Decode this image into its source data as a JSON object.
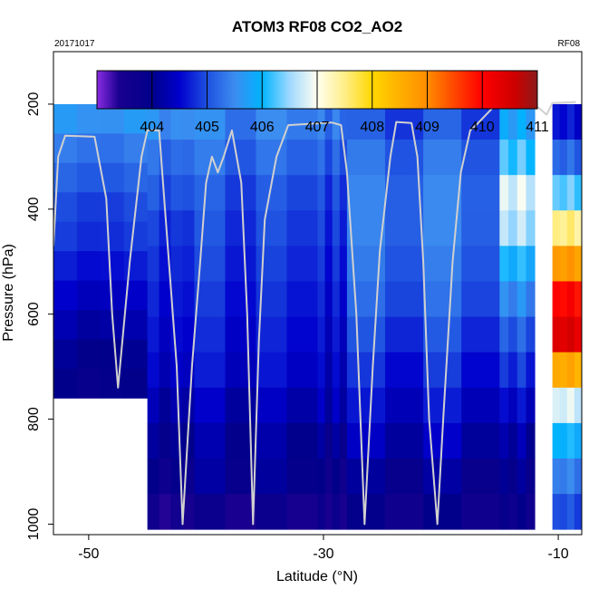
{
  "chart_data": {
    "type": "heatmap",
    "title": "ATOM3 RF08 CO2_AO2",
    "date_label": "20171017",
    "flight_label": "RF08",
    "xlabel": "Latitude (°N)",
    "ylabel": "Pressure (hPa)",
    "xlim": [
      -53,
      -8
    ],
    "ylim": [
      1020,
      100
    ],
    "x_ticks": [
      -50,
      -30,
      -10
    ],
    "y_ticks": [
      200,
      400,
      600,
      800,
      1000
    ],
    "x_tick_labels": [
      "-50",
      "-30",
      "-10"
    ],
    "y_tick_labels": [
      "200",
      "400",
      "600",
      "800",
      "1000"
    ],
    "colorbar": {
      "min": 403,
      "max": 411,
      "ticks": [
        404,
        405,
        406,
        407,
        408,
        409,
        410,
        411
      ],
      "tick_labels": [
        "404",
        "405",
        "406",
        "407",
        "408",
        "409",
        "410",
        "411"
      ],
      "stops": [
        {
          "v": 403.0,
          "c": "#8a2be2"
        },
        {
          "v": 403.4,
          "c": "#1a0090"
        },
        {
          "v": 404.0,
          "c": "#00008b"
        },
        {
          "v": 404.5,
          "c": "#0000cd"
        },
        {
          "v": 405.0,
          "c": "#1e50e0"
        },
        {
          "v": 405.5,
          "c": "#3c8cf0"
        },
        {
          "v": 406.0,
          "c": "#00b4ff"
        },
        {
          "v": 406.5,
          "c": "#9fd8ff"
        },
        {
          "v": 407.0,
          "c": "#fffff0"
        },
        {
          "v": 407.5,
          "c": "#ffee88"
        },
        {
          "v": 408.0,
          "c": "#ffd700"
        },
        {
          "v": 408.5,
          "c": "#ffb000"
        },
        {
          "v": 409.0,
          "c": "#ff8c00"
        },
        {
          "v": 409.5,
          "c": "#ff4500"
        },
        {
          "v": 410.0,
          "c": "#ff0000"
        },
        {
          "v": 410.6,
          "c": "#cd0000"
        },
        {
          "v": 411.0,
          "c": "#8b1a1a"
        }
      ]
    },
    "profiles": [
      {
        "lat0": -53,
        "lat1": -45,
        "bottom": 760,
        "values": [
          405.6,
          405.3,
          405.1,
          404.9,
          404.8,
          404.6,
          404.4,
          404.2,
          404.0,
          403.9
        ]
      },
      {
        "lat0": -45,
        "lat1": -41,
        "bottom": 1010,
        "values": [
          405.5,
          405.2,
          405.0,
          404.8,
          404.7,
          404.6,
          404.5,
          404.4,
          404.2,
          404.0,
          403.8,
          403.5
        ]
      },
      {
        "lat0": -41,
        "lat1": -30.5,
        "bottom": 1010,
        "values": [
          405.4,
          405.2,
          405.0,
          404.9,
          404.8,
          404.7,
          404.6,
          404.5,
          404.3,
          404.1,
          404.0,
          403.6
        ]
      },
      {
        "lat0": -30.5,
        "lat1": -28,
        "bottom": 1010,
        "values": [
          405.3,
          405.1,
          404.9,
          404.8,
          404.7,
          404.6,
          404.5,
          404.4,
          404.3,
          404.0,
          403.8,
          403.6
        ]
      },
      {
        "lat0": -28,
        "lat1": -15,
        "bottom": 1010,
        "values": [
          405.0,
          405.2,
          405.3,
          405.3,
          405.2,
          405.1,
          404.9,
          404.7,
          404.5,
          404.3,
          404.0,
          403.8
        ]
      },
      {
        "lat0": -15,
        "lat1": -12,
        "bottom": 1010,
        "values": [
          405.8,
          406.2,
          406.8,
          406.6,
          406.0,
          405.5,
          405.1,
          404.8,
          404.5,
          404.2,
          404.0,
          403.8
        ]
      },
      {
        "lat0": -10.5,
        "lat1": -8,
        "bottom": 1010,
        "values": [
          404.6,
          405.2,
          406.3,
          407.5,
          408.8,
          410.0,
          410.4,
          408.6,
          406.8,
          406.0,
          405.4,
          405.0
        ]
      }
    ],
    "flight_track": [
      [
        -53,
        470
      ],
      [
        -52.6,
        300
      ],
      [
        -52,
        260
      ],
      [
        -49.5,
        262
      ],
      [
        -48.5,
        380
      ],
      [
        -48,
        600
      ],
      [
        -47.5,
        740
      ],
      [
        -46.5,
        500
      ],
      [
        -45.5,
        300
      ],
      [
        -45,
        250
      ],
      [
        -44,
        250
      ],
      [
        -43.5,
        400
      ],
      [
        -42.5,
        700
      ],
      [
        -42,
        1000
      ],
      [
        -41.2,
        700
      ],
      [
        -40.5,
        500
      ],
      [
        -40,
        350
      ],
      [
        -39.5,
        300
      ],
      [
        -39,
        330
      ],
      [
        -38.5,
        300
      ],
      [
        -37.8,
        250
      ],
      [
        -37,
        350
      ],
      [
        -36.5,
        600
      ],
      [
        -36,
        1000
      ],
      [
        -35.5,
        650
      ],
      [
        -35,
        420
      ],
      [
        -34,
        300
      ],
      [
        -33,
        240
      ],
      [
        -30,
        236
      ],
      [
        -29.3,
        235
      ],
      [
        -28.5,
        240
      ],
      [
        -28,
        330
      ],
      [
        -27.2,
        600
      ],
      [
        -26.5,
        1000
      ],
      [
        -25.8,
        700
      ],
      [
        -25.2,
        480
      ],
      [
        -24.3,
        300
      ],
      [
        -23.8,
        234
      ],
      [
        -22.5,
        236
      ],
      [
        -22,
        300
      ],
      [
        -21.5,
        500
      ],
      [
        -21,
        800
      ],
      [
        -20.3,
        1000
      ],
      [
        -19.8,
        800
      ],
      [
        -19,
        500
      ],
      [
        -18.3,
        330
      ],
      [
        -17.5,
        250
      ],
      [
        -17,
        240
      ],
      [
        -15.5,
        205
      ],
      [
        -13.5,
        203
      ],
      [
        -12,
        202
      ],
      [
        -11.5,
        210
      ],
      [
        -11,
        220
      ],
      [
        -10.5,
        198
      ],
      [
        -8.5,
        196
      ]
    ]
  }
}
